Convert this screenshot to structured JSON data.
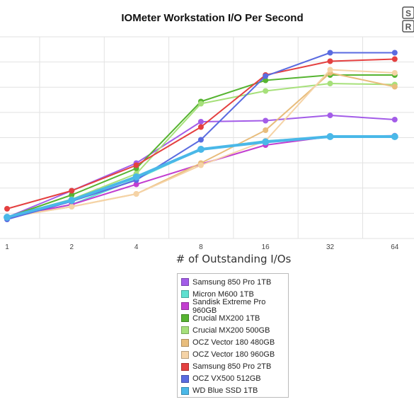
{
  "chart_data": {
    "type": "line",
    "title": "IOMeter Workstation I/O Per Second",
    "xlabel": "# of Outstanding I/Os",
    "ylabel": "",
    "categories": [
      "1",
      "2",
      "4",
      "8",
      "16",
      "32",
      "64"
    ],
    "x_scale": "log2",
    "grid": true,
    "legend_placement": "bottom-center",
    "series": [
      {
        "name": "Samsung 850 Pro 1TB",
        "color": "#a35ce8",
        "values": [
          1.0,
          2.25,
          3.55,
          5.5,
          5.55,
          5.8,
          5.6
        ]
      },
      {
        "name": "Micron M600 1TB",
        "color": "#5de0d0",
        "values": [
          1.0,
          1.6,
          2.8,
          4.2,
          4.6,
          4.78,
          4.8
        ]
      },
      {
        "name": "Sandisk Extreme Pro 960GB",
        "color": "#c23ed0",
        "values": [
          1.0,
          1.6,
          2.55,
          3.5,
          4.4,
          4.8,
          4.84
        ]
      },
      {
        "name": "Crucial MX200 1TB",
        "color": "#56b431",
        "values": [
          1.0,
          2.05,
          3.3,
          6.45,
          7.45,
          7.7,
          7.7
        ]
      },
      {
        "name": "Crucial MX200 500GB",
        "color": "#a6e07a",
        "values": [
          1.0,
          1.85,
          3.05,
          6.35,
          6.95,
          7.3,
          7.25
        ]
      },
      {
        "name": "OCZ Vector 180 480GB",
        "color": "#e8bd7c",
        "values": [
          1.0,
          1.5,
          2.1,
          3.55,
          5.1,
          7.8,
          7.15
        ]
      },
      {
        "name": "OCZ Vector 180 960GB",
        "color": "#f5d3a6",
        "values": [
          1.0,
          1.5,
          2.1,
          3.45,
          4.6,
          7.95,
          7.8
        ]
      },
      {
        "name": "Samsung 850 Pro 2TB",
        "color": "#e44040",
        "values": [
          1.4,
          2.25,
          3.45,
          5.25,
          7.7,
          8.35,
          8.45
        ]
      },
      {
        "name": "OCZ VX500 512GB",
        "color": "#5a6be0",
        "values": [
          0.9,
          1.75,
          2.75,
          4.65,
          7.65,
          8.75,
          8.75
        ]
      },
      {
        "name": "WD Blue SSD 1TB",
        "color": "#4ab8e8",
        "values": [
          1.0,
          1.8,
          2.9,
          4.2,
          4.55,
          4.8,
          4.8
        ]
      }
    ]
  }
}
